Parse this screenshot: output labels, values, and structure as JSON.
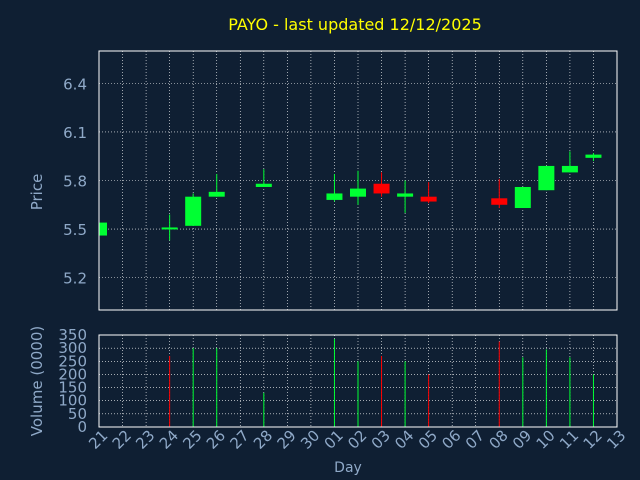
{
  "colors": {
    "background": "#0f1f33",
    "axis_text": "#8fa9c8",
    "title": "#ffff00",
    "up": "#00ff33",
    "down": "#ff0000",
    "grid": "#ffffff",
    "frame": "#ffffff"
  },
  "chart_data": [
    {
      "type": "candlestick",
      "title": "PAYO - last updated 12/12/2025",
      "ylabel": "Price",
      "ylim": [
        5.0,
        6.6
      ],
      "yticks": [
        "5.2",
        "5.5",
        "5.8",
        "6.1",
        "6.4"
      ],
      "ytick_values": [
        5.2,
        5.5,
        5.8,
        6.1,
        6.4
      ],
      "grid": true,
      "categories": [
        "21",
        "22",
        "23",
        "24",
        "25",
        "26",
        "27",
        "28",
        "29",
        "30",
        "01",
        "02",
        "03",
        "04",
        "05",
        "06",
        "07",
        "08",
        "09",
        "10",
        "11",
        "12",
        "13"
      ],
      "candles": [
        {
          "day": "21",
          "open": 5.46,
          "high": 5.54,
          "low": 5.46,
          "close": 5.54
        },
        {
          "day": "24",
          "open": 5.51,
          "high": 5.59,
          "low": 5.43,
          "close": 5.51
        },
        {
          "day": "25",
          "open": 5.52,
          "high": 5.72,
          "low": 5.52,
          "close": 5.7
        },
        {
          "day": "26",
          "open": 5.7,
          "high": 5.84,
          "low": 5.7,
          "close": 5.73
        },
        {
          "day": "28",
          "open": 5.76,
          "high": 5.87,
          "low": 5.76,
          "close": 5.78
        },
        {
          "day": "01",
          "open": 5.68,
          "high": 5.84,
          "low": 5.67,
          "close": 5.72
        },
        {
          "day": "02",
          "open": 5.7,
          "high": 5.86,
          "low": 5.65,
          "close": 5.75
        },
        {
          "day": "03",
          "open": 5.78,
          "high": 5.85,
          "low": 5.7,
          "close": 5.72
        },
        {
          "day": "04",
          "open": 5.7,
          "high": 5.8,
          "low": 5.6,
          "close": 5.72
        },
        {
          "day": "05",
          "open": 5.7,
          "high": 5.79,
          "low": 5.66,
          "close": 5.67
        },
        {
          "day": "08",
          "open": 5.69,
          "high": 5.81,
          "low": 5.63,
          "close": 5.65
        },
        {
          "day": "09",
          "open": 5.63,
          "high": 5.76,
          "low": 5.63,
          "close": 5.76
        },
        {
          "day": "10",
          "open": 5.74,
          "high": 5.89,
          "low": 5.74,
          "close": 5.89
        },
        {
          "day": "11",
          "open": 5.85,
          "high": 5.98,
          "low": 5.85,
          "close": 5.89
        },
        {
          "day": "12",
          "open": 5.94,
          "high": 5.97,
          "low": 5.92,
          "close": 5.96
        }
      ]
    },
    {
      "type": "bar",
      "ylabel": "Volume (0000)",
      "xlabel": "Day",
      "ylim": [
        0,
        350
      ],
      "yticks": [
        "0",
        "50",
        "100",
        "150",
        "200",
        "250",
        "300",
        "350"
      ],
      "ytick_values": [
        0,
        50,
        100,
        150,
        200,
        250,
        300,
        350
      ],
      "categories": [
        "21",
        "22",
        "23",
        "24",
        "25",
        "26",
        "27",
        "28",
        "29",
        "30",
        "01",
        "02",
        "03",
        "04",
        "05",
        "06",
        "07",
        "08",
        "09",
        "10",
        "11",
        "12",
        "13"
      ],
      "bars": [
        {
          "day": "24",
          "value": 270,
          "direction": "down"
        },
        {
          "day": "25",
          "value": 300,
          "direction": "up"
        },
        {
          "day": "26",
          "value": 300,
          "direction": "up"
        },
        {
          "day": "28",
          "value": 130,
          "direction": "up"
        },
        {
          "day": "01",
          "value": 335,
          "direction": "up"
        },
        {
          "day": "02",
          "value": 250,
          "direction": "up"
        },
        {
          "day": "03",
          "value": 270,
          "direction": "down"
        },
        {
          "day": "04",
          "value": 250,
          "direction": "up"
        },
        {
          "day": "05",
          "value": 200,
          "direction": "down"
        },
        {
          "day": "08",
          "value": 325,
          "direction": "down"
        },
        {
          "day": "09",
          "value": 265,
          "direction": "up"
        },
        {
          "day": "10",
          "value": 295,
          "direction": "up"
        },
        {
          "day": "11",
          "value": 265,
          "direction": "up"
        },
        {
          "day": "12",
          "value": 200,
          "direction": "up"
        }
      ]
    }
  ]
}
